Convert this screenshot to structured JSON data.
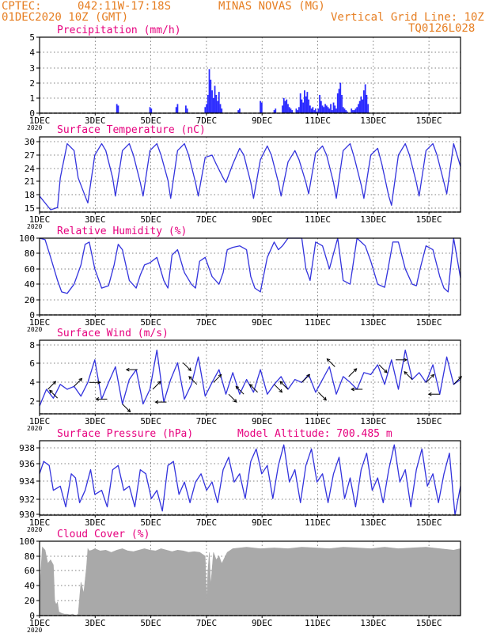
{
  "header": {
    "source": "CPTEC:",
    "coords": "042:11W-17:18S",
    "location": "MINAS NOVAS (MG)",
    "run": "01DEC2020 10Z (GMT)",
    "grid_note": "Vertical Grid Line: 10Z",
    "model": "TQ0126L028"
  },
  "x_ticks": [
    "1DEC",
    "3DEC",
    "5DEC",
    "7DEC",
    "9DEC",
    "11DEC",
    "13DEC",
    "15DEC"
  ],
  "clipped_year": "2020",
  "colors": {
    "line": "#3333dd",
    "bar": "#2b2bff",
    "cloud": "#a9a9a9",
    "title": "#e6007e",
    "header": "#e67e22",
    "grid": "#555555"
  },
  "chart_data": [
    {
      "id": "precip",
      "type": "bar",
      "title": "Precipitation (mm/h)",
      "x_unit": "days since 01DEC2020 10Z",
      "xlim": [
        0,
        15.25
      ],
      "ylim": [
        0,
        5
      ],
      "yticks": [
        "0",
        "1",
        "2",
        "3",
        "4",
        "5"
      ],
      "x": [
        2.8,
        2.85,
        4.0,
        4.05,
        4.95,
        5.0,
        5.3,
        5.35,
        6.0,
        6.05,
        6.1,
        6.15,
        6.2,
        6.25,
        6.3,
        6.35,
        6.4,
        6.45,
        6.5,
        6.55,
        6.6,
        7.2,
        7.25,
        8.0,
        8.05,
        8.5,
        8.55,
        8.8,
        8.85,
        8.9,
        8.95,
        9.0,
        9.05,
        9.1,
        9.15,
        9.3,
        9.35,
        9.4,
        9.45,
        9.5,
        9.55,
        9.6,
        9.65,
        9.7,
        9.75,
        9.8,
        9.85,
        9.9,
        9.95,
        10.0,
        10.05,
        10.1,
        10.15,
        10.2,
        10.25,
        10.3,
        10.35,
        10.4,
        10.45,
        10.5,
        10.55,
        10.6,
        10.65,
        10.7,
        10.75,
        10.8,
        10.85,
        10.9,
        10.95,
        11.0,
        11.05,
        11.1,
        11.15,
        11.3,
        11.35,
        11.4,
        11.45,
        11.5,
        11.55,
        11.6,
        11.65,
        11.7,
        11.75,
        11.8,
        11.85,
        11.9
      ],
      "values": [
        0.6,
        0.5,
        0.4,
        0.3,
        0.4,
        0.6,
        0.5,
        0.3,
        0.4,
        0.6,
        1.2,
        2.9,
        2.2,
        1.5,
        1.0,
        1.8,
        1.2,
        0.8,
        1.4,
        0.6,
        0.3,
        0.2,
        0.3,
        0.8,
        0.7,
        0.2,
        0.3,
        0.5,
        1.0,
        0.8,
        0.9,
        0.6,
        0.4,
        0.3,
        0.2,
        0.3,
        0.2,
        0.4,
        1.3,
        0.9,
        0.7,
        1.5,
        1.1,
        1.4,
        0.9,
        0.5,
        0.3,
        0.4,
        0.2,
        0.3,
        0.1,
        0.3,
        1.2,
        0.8,
        0.5,
        0.4,
        0.6,
        0.5,
        0.4,
        0.3,
        0.6,
        0.2,
        0.7,
        0.5,
        0.3,
        1.3,
        1.6,
        2.0,
        1.2,
        0.4,
        0.3,
        0.2,
        0.1,
        0.3,
        0.2,
        0.2,
        0.3,
        0.4,
        0.6,
        0.8,
        1.1,
        0.9,
        1.5,
        1.9,
        1.2,
        0.6
      ]
    },
    {
      "id": "temp",
      "type": "line",
      "title": "Surface Temperature (nC)",
      "xlim": [
        0,
        15.25
      ],
      "ylim": [
        14.5,
        31
      ],
      "yticks": [
        "15",
        "18",
        "21",
        "24",
        "27",
        "30"
      ],
      "x": [
        0.0,
        0.2,
        0.4,
        0.65,
        0.75,
        1.0,
        1.25,
        1.4,
        1.65,
        1.75,
        2.0,
        2.25,
        2.4,
        2.65,
        2.75,
        3.0,
        3.25,
        3.4,
        3.65,
        3.75,
        4.0,
        4.25,
        4.4,
        4.65,
        4.75,
        5.0,
        5.25,
        5.4,
        5.65,
        5.75,
        6.0,
        6.25,
        6.4,
        6.65,
        6.75,
        7.0,
        7.25,
        7.4,
        7.65,
        7.75,
        8.0,
        8.25,
        8.4,
        8.65,
        8.75,
        9.0,
        9.25,
        9.4,
        9.65,
        9.75,
        10.0,
        10.25,
        10.4,
        10.65,
        10.75,
        11.0,
        11.25,
        11.4,
        11.65,
        11.75,
        12.0,
        12.25,
        12.4,
        12.65,
        12.75,
        13.0,
        13.25,
        13.4,
        13.65,
        13.75,
        14.0,
        14.25,
        14.4,
        14.65,
        14.75,
        15.0,
        15.25
      ],
      "values": [
        18.0,
        16.5,
        15.0,
        15.5,
        22.0,
        29.5,
        28.0,
        22.0,
        18.0,
        16.5,
        27.0,
        29.5,
        28.0,
        22.0,
        18.0,
        28.0,
        29.5,
        27.0,
        21.0,
        18.0,
        28.0,
        29.5,
        27.0,
        21.5,
        17.5,
        28.0,
        29.5,
        27.0,
        21.0,
        18.0,
        26.5,
        27.0,
        25.0,
        22.0,
        21.0,
        25.0,
        28.5,
        27.0,
        21.0,
        17.5,
        26.0,
        29.0,
        27.0,
        21.0,
        18.0,
        25.5,
        28.0,
        26.0,
        21.0,
        18.5,
        27.5,
        29.0,
        27.0,
        21.0,
        17.5,
        28.0,
        29.5,
        26.5,
        20.5,
        17.5,
        27.0,
        28.5,
        25.0,
        18.0,
        16.0,
        27.0,
        29.5,
        27.0,
        21.0,
        18.0,
        28.0,
        29.5,
        27.0,
        21.0,
        18.5,
        29.5,
        24.5
      ]
    },
    {
      "id": "rh",
      "type": "line",
      "title": "Relative Humidity (%)",
      "xlim": [
        0,
        15.25
      ],
      "ylim": [
        0,
        100
      ],
      "yticks": [
        "0",
        "20",
        "40",
        "60",
        "80",
        "100"
      ],
      "x": [
        0.0,
        0.2,
        0.4,
        0.65,
        0.8,
        1.0,
        1.25,
        1.5,
        1.65,
        1.8,
        2.0,
        2.25,
        2.5,
        2.7,
        2.85,
        3.0,
        3.25,
        3.5,
        3.65,
        3.8,
        4.0,
        4.25,
        4.5,
        4.65,
        4.8,
        5.0,
        5.25,
        5.5,
        5.65,
        5.8,
        6.0,
        6.25,
        6.5,
        6.65,
        6.8,
        7.0,
        7.25,
        7.5,
        7.65,
        7.8,
        8.0,
        8.25,
        8.5,
        8.65,
        8.8,
        9.0,
        9.25,
        9.5,
        9.65,
        9.8,
        10.0,
        10.25,
        10.5,
        10.65,
        10.8,
        11.0,
        11.25,
        11.5,
        11.65,
        11.8,
        12.0,
        12.25,
        12.5,
        12.65,
        12.8,
        13.0,
        13.25,
        13.5,
        13.65,
        13.8,
        14.0,
        14.25,
        14.5,
        14.65,
        14.8,
        15.0,
        15.25
      ],
      "values": [
        100,
        98,
        75,
        45,
        30,
        28,
        40,
        65,
        92,
        95,
        60,
        35,
        38,
        65,
        92,
        85,
        45,
        35,
        52,
        65,
        68,
        75,
        45,
        35,
        78,
        85,
        55,
        40,
        35,
        70,
        75,
        50,
        40,
        55,
        85,
        88,
        90,
        85,
        50,
        35,
        30,
        75,
        95,
        85,
        90,
        100,
        100,
        100,
        60,
        45,
        95,
        90,
        60,
        80,
        100,
        45,
        40,
        100,
        95,
        90,
        70,
        40,
        36,
        65,
        95,
        95,
        60,
        40,
        38,
        62,
        90,
        85,
        50,
        35,
        30,
        100,
        48
      ]
    },
    {
      "id": "wind",
      "type": "line",
      "title": "Surface Wind (m/s)",
      "xlim": [
        0,
        15.25
      ],
      "ylim": [
        1,
        8.5
      ],
      "yticks": [
        "2",
        "4",
        "6",
        "8"
      ],
      "x": [
        0.0,
        0.25,
        0.5,
        0.75,
        1.0,
        1.25,
        1.5,
        1.75,
        2.0,
        2.25,
        2.5,
        2.75,
        3.0,
        3.25,
        3.5,
        3.75,
        4.0,
        4.25,
        4.5,
        4.75,
        5.0,
        5.25,
        5.5,
        5.75,
        6.0,
        6.25,
        6.5,
        6.75,
        7.0,
        7.25,
        7.5,
        7.75,
        8.0,
        8.25,
        8.5,
        8.75,
        9.0,
        9.25,
        9.5,
        9.75,
        10.0,
        10.25,
        10.5,
        10.75,
        11.0,
        11.25,
        11.5,
        11.75,
        12.0,
        12.25,
        12.5,
        12.75,
        13.0,
        13.25,
        13.5,
        13.75,
        14.0,
        14.25,
        14.5,
        14.75,
        15.0,
        15.25
      ],
      "values": [
        1.8,
        3.5,
        2.6,
        4.0,
        3.5,
        3.8,
        2.8,
        4.2,
        6.5,
        2.5,
        4.2,
        5.8,
        2.0,
        4.5,
        5.5,
        2.0,
        3.5,
        7.5,
        2.2,
        4.5,
        6.2,
        2.5,
        4.0,
        6.8,
        2.8,
        4.2,
        5.5,
        3.0,
        5.2,
        3.0,
        4.5,
        3.2,
        5.5,
        3.0,
        4.0,
        4.8,
        3.5,
        4.5,
        4.2,
        5.0,
        3.2,
        4.5,
        5.8,
        3.0,
        4.8,
        4.2,
        3.5,
        5.2,
        5.0,
        6.0,
        4.0,
        6.5,
        3.5,
        7.5,
        4.5,
        5.2,
        4.2,
        6.0,
        3.0,
        6.8,
        4.0,
        4.5
      ],
      "barbs": {
        "x": [
          0.3,
          0.65,
          1.25,
          1.8,
          2.45,
          3.0,
          3.55,
          4.1,
          4.6,
          5.2,
          5.7,
          6.3,
          6.85,
          7.4,
          7.9,
          8.5,
          9.0,
          9.5,
          10.1,
          10.7,
          11.2,
          11.7,
          12.3,
          12.9,
          13.5,
          14.0,
          14.5,
          15.0
        ],
        "u": [
          1,
          -1,
          1,
          1,
          -1,
          1,
          -1,
          1,
          -1,
          1,
          -1,
          1,
          1,
          -1,
          -1,
          1,
          -1,
          1,
          1,
          -1,
          1,
          -1,
          1,
          1,
          -1,
          1,
          -1,
          1
        ],
        "v": [
          1,
          1,
          1,
          0,
          0,
          -1,
          0,
          1,
          0,
          -1,
          1,
          1,
          -1,
          1,
          1,
          -1,
          1,
          1,
          -1,
          1,
          1,
          0,
          -1,
          0,
          1,
          1,
          0,
          1
        ]
      }
    },
    {
      "id": "pres",
      "type": "line",
      "title": "Surface Pressure (hPa)",
      "annotation": "Model Altitude: 700.485 m",
      "xlim": [
        0,
        15.25
      ],
      "ylim": [
        930,
        939
      ],
      "yticks": [
        "930",
        "932",
        "934",
        "936",
        "938"
      ],
      "x": [
        0.0,
        0.15,
        0.35,
        0.5,
        0.75,
        0.95,
        1.15,
        1.3,
        1.45,
        1.65,
        1.85,
        2.0,
        2.25,
        2.45,
        2.65,
        2.85,
        3.05,
        3.25,
        3.45,
        3.65,
        3.85,
        4.05,
        4.25,
        4.45,
        4.65,
        4.85,
        5.05,
        5.25,
        5.45,
        5.65,
        5.85,
        6.05,
        6.25,
        6.45,
        6.65,
        6.85,
        7.05,
        7.25,
        7.45,
        7.65,
        7.85,
        8.05,
        8.25,
        8.45,
        8.65,
        8.85,
        9.05,
        9.25,
        9.45,
        9.65,
        9.85,
        10.05,
        10.25,
        10.45,
        10.65,
        10.85,
        11.05,
        11.25,
        11.45,
        11.65,
        11.85,
        12.05,
        12.25,
        12.45,
        12.65,
        12.85,
        13.05,
        13.25,
        13.45,
        13.65,
        13.85,
        14.05,
        14.25,
        14.45,
        14.65,
        14.85,
        15.05,
        15.25
      ],
      "values": [
        935.0,
        936.5,
        936.0,
        933.0,
        933.5,
        931.0,
        935.0,
        934.5,
        931.5,
        933.0,
        935.5,
        932.5,
        933.0,
        931.0,
        935.5,
        936.0,
        933.0,
        933.5,
        931.0,
        935.5,
        935.0,
        932.0,
        933.0,
        930.5,
        936.0,
        936.5,
        932.5,
        934.0,
        931.5,
        934.0,
        935.0,
        933.0,
        934.0,
        931.5,
        935.5,
        937.0,
        934.0,
        935.0,
        932.0,
        936.5,
        938.0,
        935.0,
        936.0,
        932.0,
        936.0,
        938.5,
        934.0,
        935.5,
        931.5,
        936.0,
        938.0,
        934.0,
        935.0,
        931.5,
        935.0,
        937.0,
        932.0,
        934.5,
        931.0,
        935.5,
        937.5,
        933.0,
        934.5,
        931.5,
        935.5,
        938.5,
        934.0,
        935.5,
        931.0,
        935.5,
        938.0,
        933.5,
        935.0,
        931.5,
        935.0,
        937.5,
        930.0,
        933.5
      ]
    },
    {
      "id": "cloud",
      "type": "area",
      "title": "Cloud Cover (%)",
      "xlim": [
        0,
        15.25
      ],
      "ylim": [
        0,
        100
      ],
      "yticks": [
        "0",
        "20",
        "40",
        "60",
        "80",
        "100"
      ],
      "x": [
        0.0,
        0.1,
        0.2,
        0.3,
        0.4,
        0.5,
        0.55,
        0.6,
        0.65,
        0.7,
        0.8,
        0.9,
        1.0,
        1.1,
        1.2,
        1.3,
        1.4,
        1.5,
        1.6,
        1.7,
        1.75,
        1.8,
        1.9,
        2.0,
        2.2,
        2.4,
        2.6,
        2.8,
        3.0,
        3.2,
        3.4,
        3.6,
        3.8,
        4.0,
        4.2,
        4.4,
        4.6,
        4.8,
        5.0,
        5.2,
        5.4,
        5.6,
        5.8,
        6.0,
        6.05,
        6.1,
        6.15,
        6.2,
        6.3,
        6.4,
        6.5,
        6.6,
        6.8,
        7.0,
        7.5,
        8.0,
        8.5,
        9.0,
        9.5,
        10.0,
        10.5,
        11.0,
        11.5,
        12.0,
        12.5,
        13.0,
        13.5,
        14.0,
        14.5,
        15.0,
        15.25
      ],
      "values": [
        30,
        92,
        88,
        70,
        75,
        68,
        20,
        15,
        18,
        5,
        3,
        2,
        2,
        1,
        2,
        0,
        2,
        45,
        30,
        65,
        90,
        87,
        88,
        90,
        87,
        88,
        85,
        88,
        90,
        87,
        86,
        88,
        90,
        88,
        87,
        90,
        88,
        86,
        88,
        87,
        85,
        86,
        85,
        80,
        20,
        60,
        85,
        40,
        85,
        75,
        80,
        70,
        85,
        90,
        92,
        90,
        91,
        90,
        92,
        91,
        90,
        92,
        91,
        90,
        92,
        90,
        91,
        92,
        90,
        88,
        90
      ]
    }
  ]
}
